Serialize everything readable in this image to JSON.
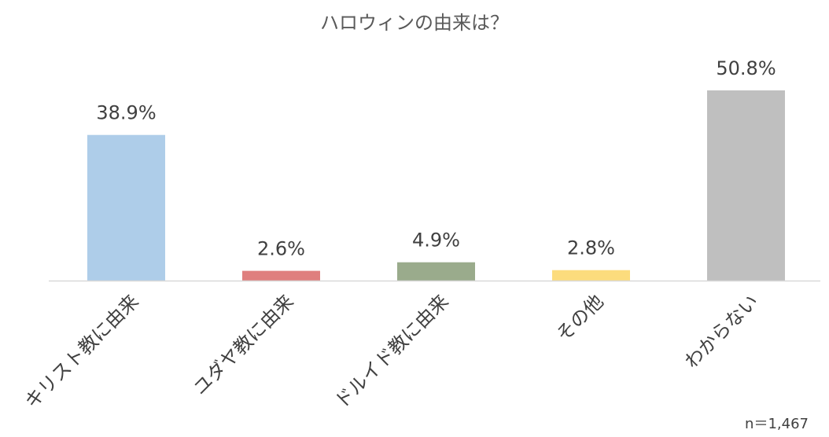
{
  "chart_data": {
    "type": "bar",
    "title": "ハロウィンの由来は？",
    "categories": [
      "キリスト教に由来",
      "ユダヤ教に由来",
      "ドルイド教に由来",
      "その他",
      "わからない"
    ],
    "values": [
      38.9,
      2.6,
      4.9,
      2.8,
      50.8
    ],
    "value_labels": [
      "38.9%",
      "2.6%",
      "4.9%",
      "2.8%",
      "50.8%"
    ],
    "colors": [
      "#aecde9",
      "#df7f7e",
      "#9aab8c",
      "#fcdc7d",
      "#bfbfbf"
    ],
    "ylim": [
      0,
      50.8
    ],
    "grid": false,
    "legend": "none",
    "note": "n＝1,467"
  }
}
